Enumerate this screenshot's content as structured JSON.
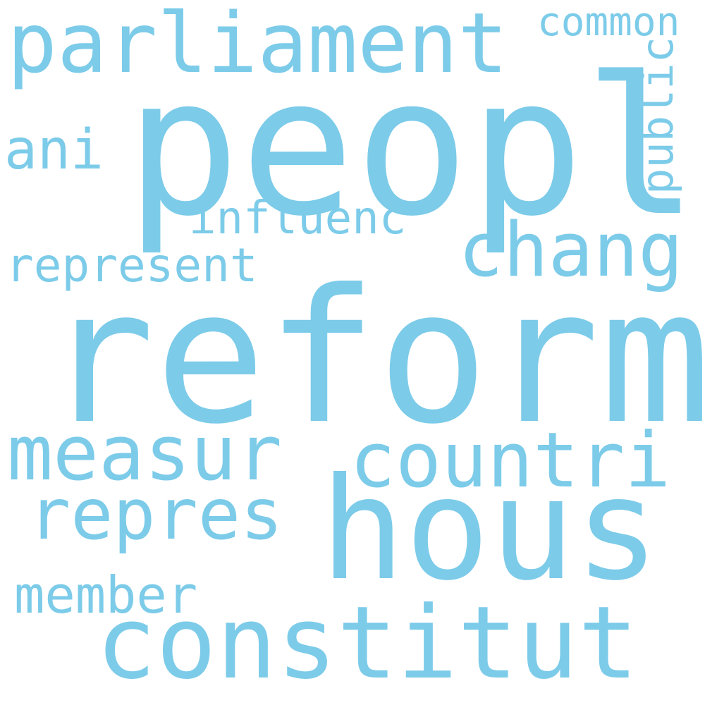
{
  "color": "#7ccbe9",
  "words": {
    "parliament": "parliament",
    "common": "common",
    "peopl": "peopl",
    "ani": "ani",
    "public": "public",
    "influenc": "influenc",
    "chang": "chang",
    "represent": "represent",
    "reform": "reform",
    "measur": "measur",
    "countri": "countri",
    "repres": "repres",
    "hous": "hous",
    "member": "member",
    "constitut": "constitut"
  }
}
